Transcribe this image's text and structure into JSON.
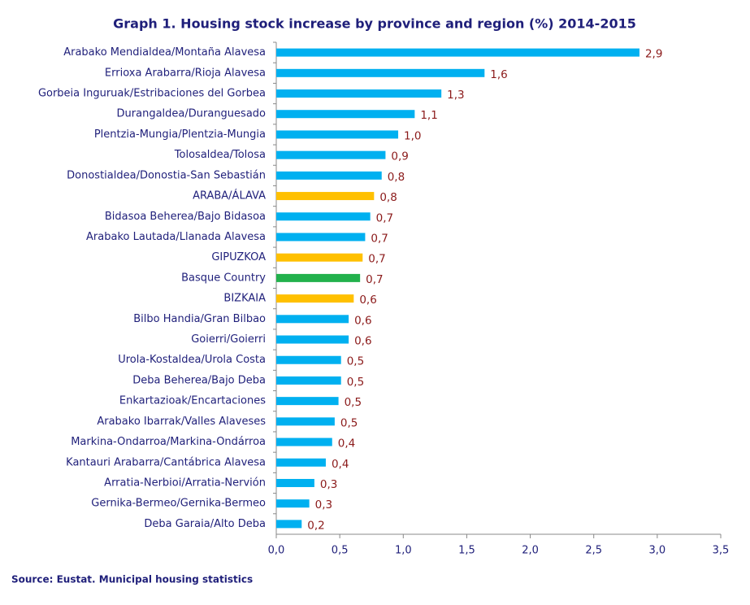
{
  "chart_data": {
    "type": "bar",
    "orientation": "horizontal",
    "title": "Graph 1. Housing stock increase by province and region (%) 2014-2015",
    "source": "Source: Eustat. Municipal housing statistics",
    "categories": [
      "Arabako Mendialdea/Montaña Alavesa",
      "Errioxa Arabarra/Rioja Alavesa",
      "Gorbeia Inguruak/Estribaciones del Gorbea",
      "Durangaldea/Duranguesado",
      "Plentzia-Mungia/Plentzia-Mungia",
      "Tolosaldea/Tolosa",
      "Donostialdea/Donostia-San Sebastián",
      "ARABA/ÁLAVA",
      "Bidasoa Beherea/Bajo Bidasoa",
      "Arabako Lautada/Llanada Alavesa",
      "GIPUZKOA",
      "Basque Country",
      "BIZKAIA",
      "Bilbo Handia/Gran Bilbao",
      "Goierri/Goierri",
      "Urola-Kostaldea/Urola Costa",
      "Deba Beherea/Bajo Deba",
      "Enkartazioak/Encartaciones",
      "Arabako Ibarrak/Valles Alaveses",
      "Markina-Ondarroa/Markina-Ondárroa",
      "Kantauri Arabarra/Cantábrica Alavesa",
      "Arratia-Nerbioi/Arratia-Nervión",
      "Gernika-Bermeo/Gernika-Bermeo",
      "Deba Garaia/Alto Deba"
    ],
    "values": [
      2.86,
      1.64,
      1.3,
      1.09,
      0.96,
      0.86,
      0.83,
      0.77,
      0.74,
      0.7,
      0.68,
      0.66,
      0.61,
      0.57,
      0.57,
      0.51,
      0.51,
      0.49,
      0.46,
      0.44,
      0.39,
      0.3,
      0.26,
      0.2
    ],
    "value_labels": [
      "2,9",
      "1,6",
      "1,3",
      "1,1",
      "1,0",
      "0,9",
      "0,8",
      "0,8",
      "0,7",
      "0,7",
      "0,7",
      "0,7",
      "0,6",
      "0,6",
      "0,6",
      "0,5",
      "0,5",
      "0,5",
      "0,5",
      "0,4",
      "0,4",
      "0,3",
      "0,3",
      "0,2"
    ],
    "colors": [
      "#00b0f0",
      "#00b0f0",
      "#00b0f0",
      "#00b0f0",
      "#00b0f0",
      "#00b0f0",
      "#00b0f0",
      "#ffc000",
      "#00b0f0",
      "#00b0f0",
      "#ffc000",
      "#22b14c",
      "#ffc000",
      "#00b0f0",
      "#00b0f0",
      "#00b0f0",
      "#00b0f0",
      "#00b0f0",
      "#00b0f0",
      "#00b0f0",
      "#00b0f0",
      "#00b0f0",
      "#00b0f0",
      "#00b0f0"
    ],
    "xlim": [
      0,
      3.5
    ],
    "xticks": [
      {
        "value": 0,
        "label": "0,0"
      },
      {
        "value": 0.5,
        "label": "0,5"
      },
      {
        "value": 1,
        "label": "1,0"
      },
      {
        "value": 1.5,
        "label": "1,5"
      },
      {
        "value": 2,
        "label": "2,0"
      },
      {
        "value": 2.5,
        "label": "2,5"
      },
      {
        "value": 3,
        "label": "3,0"
      },
      {
        "value": 3.5,
        "label": "3,5"
      }
    ],
    "grid": false
  }
}
